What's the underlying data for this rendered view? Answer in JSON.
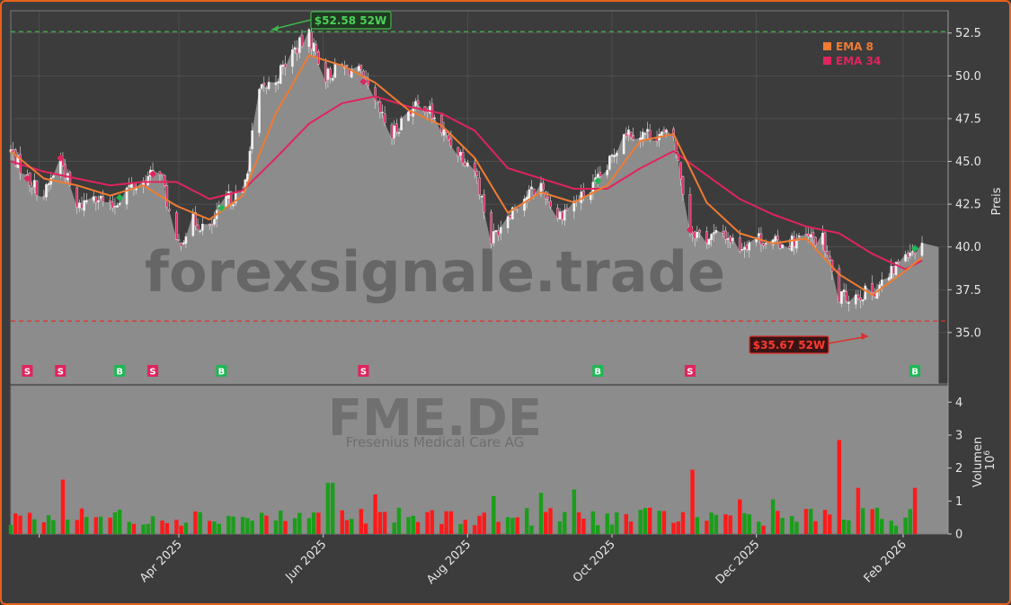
{
  "chart_data": [
    {
      "type": "candlestick",
      "ticker": "FME.DE",
      "ylabel": "Preis",
      "ylim": [
        32.0,
        53.8
      ],
      "yticks": [
        35.0,
        37.5,
        40.0,
        42.5,
        45.0,
        47.5,
        50.0,
        52.5
      ],
      "xlabels": [
        "Apr 2025",
        "Jun 2025",
        "Aug 2025",
        "Oct 2025",
        "Dec 2025",
        "Feb 2026"
      ],
      "x_range": [
        "2025-01-20",
        "2026-02-20"
      ],
      "grid": true,
      "legend": {
        "placement": "top-right",
        "entries": [
          {
            "label": "EMA 8",
            "color": "#f07b32"
          },
          {
            "label": "EMA 34",
            "color": "#e0245e"
          }
        ]
      },
      "high_52w": {
        "value": 52.58,
        "label": "$52.58 52W",
        "color": "#3fb54a"
      },
      "low_52w": {
        "value": 35.67,
        "label": "$35.67 52W",
        "color": "#e0302c"
      },
      "close_path": [
        [
          "2025-01-20",
          45.6
        ],
        [
          "2025-01-27",
          44.0
        ],
        [
          "2025-02-03",
          43.0
        ],
        [
          "2025-02-10",
          45.2
        ],
        [
          "2025-02-17",
          42.2
        ],
        [
          "2025-02-24",
          43.2
        ],
        [
          "2025-03-03",
          42.2
        ],
        [
          "2025-03-10",
          43.4
        ],
        [
          "2025-03-17",
          43.8
        ],
        [
          "2025-03-24",
          44.6
        ],
        [
          "2025-03-31",
          40.0
        ],
        [
          "2025-04-07",
          41.5
        ],
        [
          "2025-04-14",
          41.0
        ],
        [
          "2025-04-21",
          42.8
        ],
        [
          "2025-04-28",
          43.0
        ],
        [
          "2025-05-05",
          49.0
        ],
        [
          "2025-05-12",
          49.8
        ],
        [
          "2025-05-19",
          51.4
        ],
        [
          "2025-05-26",
          52.3
        ],
        [
          "2025-06-02",
          50.0
        ],
        [
          "2025-06-09",
          50.5
        ],
        [
          "2025-06-16",
          50.2
        ],
        [
          "2025-06-23",
          48.3
        ],
        [
          "2025-06-30",
          46.5
        ],
        [
          "2025-07-07",
          48.0
        ],
        [
          "2025-07-14",
          48.3
        ],
        [
          "2025-07-21",
          46.8
        ],
        [
          "2025-07-28",
          45.6
        ],
        [
          "2025-08-04",
          44.6
        ],
        [
          "2025-08-11",
          40.4
        ],
        [
          "2025-08-18",
          42.0
        ],
        [
          "2025-08-25",
          42.9
        ],
        [
          "2025-09-01",
          43.6
        ],
        [
          "2025-09-08",
          41.8
        ],
        [
          "2025-09-15",
          42.6
        ],
        [
          "2025-09-22",
          43.3
        ],
        [
          "2025-09-29",
          44.6
        ],
        [
          "2025-10-06",
          46.8
        ],
        [
          "2025-10-13",
          46.6
        ],
        [
          "2025-10-20",
          46.6
        ],
        [
          "2025-10-27",
          46.4
        ],
        [
          "2025-11-03",
          41.0
        ],
        [
          "2025-11-10",
          40.5
        ],
        [
          "2025-11-17",
          40.8
        ],
        [
          "2025-11-24",
          40.0
        ],
        [
          "2025-12-01",
          40.6
        ],
        [
          "2025-12-08",
          40.2
        ],
        [
          "2025-12-15",
          40.3
        ],
        [
          "2025-12-22",
          40.5
        ],
        [
          "2025-12-29",
          40.4
        ],
        [
          "2026-01-05",
          37.0
        ],
        [
          "2026-01-12",
          37.2
        ],
        [
          "2026-01-19",
          37.4
        ],
        [
          "2026-01-26",
          38.2
        ],
        [
          "2026-02-02",
          39.8
        ],
        [
          "2026-02-09",
          40.0
        ]
      ],
      "ema8": [
        [
          "2025-01-20",
          45.6
        ],
        [
          "2025-02-03",
          44.0
        ],
        [
          "2025-02-17",
          43.6
        ],
        [
          "2025-03-03",
          43.0
        ],
        [
          "2025-03-17",
          43.6
        ],
        [
          "2025-03-31",
          42.4
        ],
        [
          "2025-04-14",
          41.6
        ],
        [
          "2025-04-28",
          43.0
        ],
        [
          "2025-05-12",
          47.8
        ],
        [
          "2025-05-26",
          51.2
        ],
        [
          "2025-06-09",
          50.6
        ],
        [
          "2025-06-23",
          49.6
        ],
        [
          "2025-07-07",
          48.0
        ],
        [
          "2025-07-21",
          47.1
        ],
        [
          "2025-08-04",
          45.2
        ],
        [
          "2025-08-18",
          42.0
        ],
        [
          "2025-09-01",
          43.2
        ],
        [
          "2025-09-15",
          42.6
        ],
        [
          "2025-09-29",
          43.6
        ],
        [
          "2025-10-13",
          46.2
        ],
        [
          "2025-10-27",
          46.6
        ],
        [
          "2025-11-10",
          42.6
        ],
        [
          "2025-11-24",
          40.8
        ],
        [
          "2025-12-08",
          40.2
        ],
        [
          "2025-12-22",
          40.5
        ],
        [
          "2026-01-05",
          38.4
        ],
        [
          "2026-01-19",
          37.2
        ],
        [
          "2026-02-02",
          38.6
        ],
        [
          "2026-02-09",
          39.4
        ]
      ],
      "ema34": [
        [
          "2025-01-20",
          45.0
        ],
        [
          "2025-02-03",
          44.4
        ],
        [
          "2025-02-17",
          44.0
        ],
        [
          "2025-03-03",
          43.6
        ],
        [
          "2025-03-17",
          43.8
        ],
        [
          "2025-03-31",
          43.8
        ],
        [
          "2025-04-14",
          42.8
        ],
        [
          "2025-04-28",
          43.3
        ],
        [
          "2025-05-12",
          45.2
        ],
        [
          "2025-05-26",
          47.2
        ],
        [
          "2025-06-09",
          48.4
        ],
        [
          "2025-06-23",
          48.8
        ],
        [
          "2025-07-07",
          48.2
        ],
        [
          "2025-07-21",
          47.8
        ],
        [
          "2025-08-04",
          46.8
        ],
        [
          "2025-08-18",
          44.6
        ],
        [
          "2025-09-01",
          44.0
        ],
        [
          "2025-09-15",
          43.4
        ],
        [
          "2025-09-29",
          43.4
        ],
        [
          "2025-10-13",
          44.6
        ],
        [
          "2025-10-27",
          45.6
        ],
        [
          "2025-11-10",
          44.2
        ],
        [
          "2025-11-24",
          42.8
        ],
        [
          "2025-12-08",
          41.9
        ],
        [
          "2025-12-22",
          41.2
        ],
        [
          "2026-01-05",
          40.8
        ],
        [
          "2026-01-19",
          39.6
        ],
        [
          "2026-02-02",
          38.7
        ],
        [
          "2026-02-09",
          39.2
        ]
      ],
      "signals": [
        {
          "date": "2025-01-27",
          "label": "S",
          "color": "#e0245e"
        },
        {
          "date": "2025-02-10",
          "label": "S",
          "color": "#e0245e"
        },
        {
          "date": "2025-03-07",
          "label": "B",
          "color": "#1db954"
        },
        {
          "date": "2025-03-21",
          "label": "S",
          "color": "#e0245e"
        },
        {
          "date": "2025-04-19",
          "label": "B",
          "color": "#1db954"
        },
        {
          "date": "2025-06-18",
          "label": "S",
          "color": "#e0245e"
        },
        {
          "date": "2025-09-25",
          "label": "B",
          "color": "#1db954"
        },
        {
          "date": "2025-11-03",
          "label": "S",
          "color": "#e0245e"
        },
        {
          "date": "2026-02-06",
          "label": "B",
          "color": "#1db954"
        }
      ]
    },
    {
      "type": "bar",
      "ylabel": "Volumen",
      "yunit_exponent": "6",
      "ylim": [
        0,
        4.5
      ],
      "yticks": [
        0,
        1,
        2,
        3,
        4
      ],
      "volume_peaks_millions": [
        [
          "2025-02-10",
          1.65
        ],
        [
          "2025-06-04",
          1.55
        ],
        [
          "2025-06-23",
          1.2
        ],
        [
          "2025-08-11",
          1.15
        ],
        [
          "2025-09-01",
          1.25
        ],
        [
          "2025-09-15",
          1.35
        ],
        [
          "2025-11-03",
          1.95
        ],
        [
          "2025-11-24",
          1.05
        ],
        [
          "2025-12-08",
          1.05
        ],
        [
          "2026-01-05",
          2.85
        ],
        [
          "2026-01-12",
          1.4
        ],
        [
          "2026-02-06",
          1.4
        ]
      ],
      "colors": {
        "up": "#1a9e1a",
        "down": "#ff1a1a"
      }
    }
  ],
  "watermark": {
    "site": "forexsignale.trade",
    "ticker": "FME.DE",
    "company": "Fresenius Medical Care AG"
  },
  "style": {
    "background": "#3c3c3c",
    "plot_fill": "#8c8c8c",
    "border": "#e8621c"
  }
}
